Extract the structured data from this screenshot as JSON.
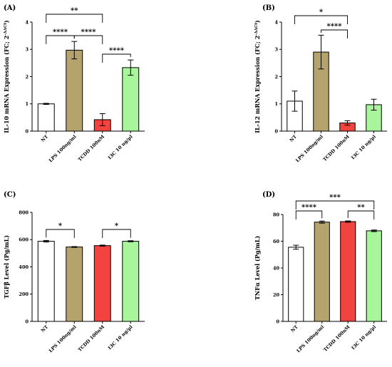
{
  "chart_data": [
    {
      "panel": "(A)",
      "type": "bar",
      "categories": [
        "NT",
        "LPS 100ng/ml",
        "TCDD 100nM",
        "I3C 10 ng/µl"
      ],
      "values": [
        1.0,
        2.97,
        0.42,
        2.33
      ],
      "errors": [
        0.02,
        0.32,
        0.22,
        0.28
      ],
      "ylabel": "IL-10 mRNA Expression (FC; 2^-ΔΔCt)",
      "ylim": [
        0,
        4
      ],
      "yticks": [
        "0",
        "1",
        "2",
        "3",
        "4"
      ],
      "bar_colors": [
        "#ffffff",
        "#b5a36e",
        "#f1433f",
        "#a8f59b"
      ],
      "significance": [
        {
          "from": 0,
          "to": 2,
          "label": "**"
        },
        {
          "from": 0,
          "to": 1,
          "label": "****"
        },
        {
          "from": 1,
          "to": 2,
          "label": "****"
        },
        {
          "from": 2,
          "to": 3,
          "label": "****"
        }
      ]
    },
    {
      "panel": "(B)",
      "type": "bar",
      "categories": [
        "NT",
        "LPS 100ng/ml",
        "TCDD 100nM",
        "I3C 10 ng/µl"
      ],
      "values": [
        1.1,
        2.9,
        0.3,
        0.97
      ],
      "errors": [
        0.37,
        0.62,
        0.08,
        0.2
      ],
      "ylabel": "IL-12 mRNA Expression (FC; 2^-ΔΔCt)",
      "ylim": [
        0,
        4
      ],
      "yticks": [
        "0",
        "1",
        "2",
        "3",
        "4"
      ],
      "bar_colors": [
        "#ffffff",
        "#b5a36e",
        "#f1433f",
        "#a8f59b"
      ],
      "significance": [
        {
          "from": 0,
          "to": 2,
          "label": "*"
        },
        {
          "from": 1,
          "to": 2,
          "label": "****"
        }
      ]
    },
    {
      "panel": "(C)",
      "type": "bar",
      "categories": [
        "NT",
        "LPS 100ng/ml",
        "TCDD 100nM",
        "I3C 10 ng/µl"
      ],
      "values": [
        588,
        546,
        556,
        588
      ],
      "errors": [
        6,
        3,
        4,
        4
      ],
      "ylabel": "TGFβ Level (Pg/mL)",
      "ylim": [
        0,
        800
      ],
      "yticks": [
        "0",
        "200",
        "400",
        "600",
        "800"
      ],
      "bar_colors": [
        "#ffffff",
        "#b5a36e",
        "#f1433f",
        "#a8f59b"
      ],
      "significance": [
        {
          "from": 0,
          "to": 1,
          "label": "*"
        },
        {
          "from": 2,
          "to": 3,
          "label": "*"
        }
      ]
    },
    {
      "panel": "(D)",
      "type": "bar",
      "categories": [
        "NT",
        "LPS 100ng/ml",
        "TCDD 100nM",
        "I3C 10 ng/µl"
      ],
      "values": [
        55.5,
        74.3,
        74.7,
        67.8
      ],
      "errors": [
        1.5,
        0.8,
        0.5,
        0.6
      ],
      "ylabel": "TNFα Level (Pg/mL)",
      "ylim": [
        0,
        80
      ],
      "yticks": [
        "0",
        "20",
        "40",
        "60",
        "80"
      ],
      "bar_colors": [
        "#ffffff",
        "#b5a36e",
        "#f1433f",
        "#a8f59b"
      ],
      "significance": [
        {
          "from": 0,
          "to": 3,
          "label": "***"
        },
        {
          "from": 0,
          "to": 1,
          "label": "****"
        },
        {
          "from": 2,
          "to": 3,
          "label": "**"
        }
      ]
    }
  ]
}
